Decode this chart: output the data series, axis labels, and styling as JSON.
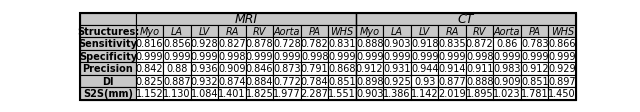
{
  "title_mri": "MRI",
  "title_ct": "CT",
  "row_headers": [
    "Structures:",
    "Sensitivity",
    "Specificity",
    "Precision",
    "DI",
    "S2S(mm)"
  ],
  "col_headers": [
    "Myo",
    "LA",
    "LV",
    "RA",
    "RV",
    "Aorta",
    "PA",
    "WHS"
  ],
  "mri_data": [
    [
      "0.816",
      "0.856",
      "0.928",
      "0.827",
      "0.878",
      "0.728",
      "0.782",
      "0.831"
    ],
    [
      "0.999",
      "0.999",
      "0.999",
      "0.998",
      "0.999",
      "0.999",
      "0.998",
      "0.999"
    ],
    [
      "0.842",
      "0.88",
      "0.936",
      "0.909",
      "0.846",
      "0.873",
      "0.791",
      "0.868"
    ],
    [
      "0.825",
      "0.887",
      "0.932",
      "0.874",
      "0.884",
      "0.772",
      "0.784",
      "0.851"
    ],
    [
      "1.152",
      "1.130",
      "1.084",
      "1.401",
      "1.825",
      "1.977",
      "2.287",
      "1.551"
    ]
  ],
  "ct_data": [
    [
      "0.888",
      "0.903",
      "0.918",
      "0.835",
      "0.872",
      "0.86",
      "0.783",
      "0.866"
    ],
    [
      "0.999",
      "0.999",
      "0.999",
      "0.999",
      "0.998",
      "0.999",
      "0.999",
      "0.999"
    ],
    [
      "0.912",
      "0.931",
      "0.944",
      "0.914",
      "0.911",
      "0.983",
      "0.912",
      "0.929"
    ],
    [
      "0.898",
      "0.925",
      "0.93",
      "0.877",
      "0.888",
      "0.909",
      "0.851",
      "0.897"
    ],
    [
      "0.903",
      "1.386",
      "1.142",
      "2.019",
      "1.895",
      "1.023",
      "1.781",
      "1.450"
    ]
  ],
  "bg_color": "#ffffff",
  "header_bg": "#c8c8c8",
  "font_size": 7.0,
  "title_font_size": 9.0,
  "header_font_size": 7.0
}
